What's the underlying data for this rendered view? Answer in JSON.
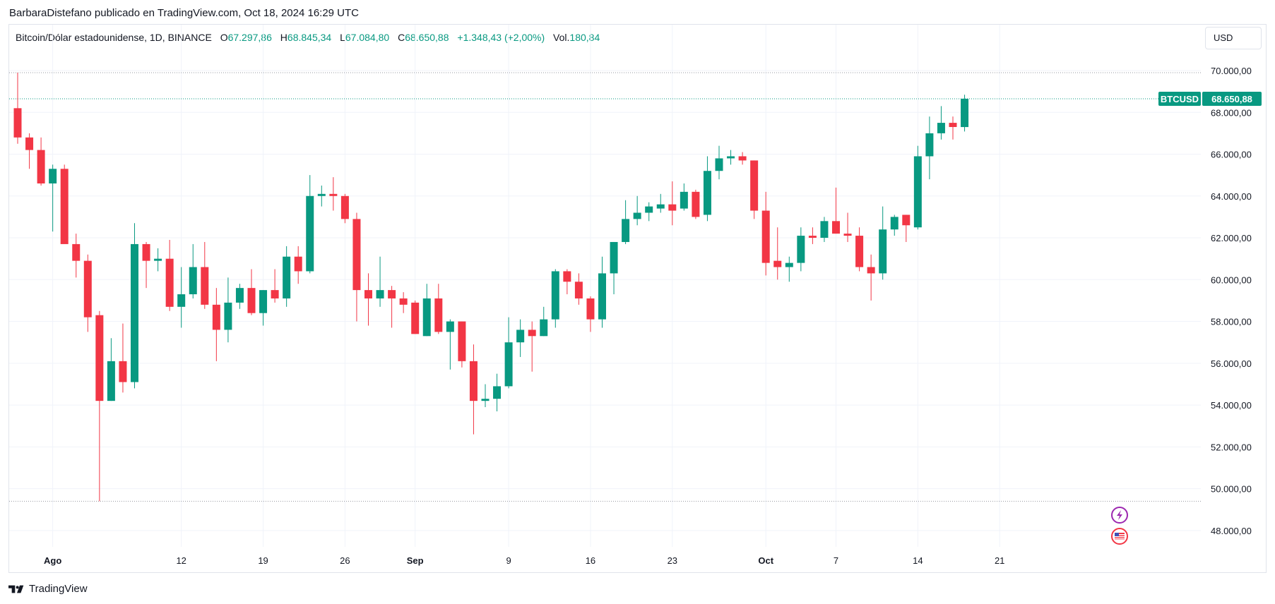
{
  "attribution": "BarbaraDistefano publicado en TradingView.com, Oct 18, 2024 16:29 UTC",
  "legend": {
    "symbol": "Bitcoin/Dólar estadounidense, 1D, BINANCE",
    "open_label": "O",
    "open": "67.297,86",
    "high_label": "H",
    "high": "68.845,34",
    "low_label": "L",
    "low": "67.084,80",
    "close_label": "C",
    "close": "68.650,88",
    "change": "+1.348,43 (+2,00%)",
    "volume_label": "Vol.",
    "volume": "180,84"
  },
  "currency_button": "USD",
  "footer_brand": "TradingView",
  "colors": {
    "up": "#089981",
    "down": "#f23645",
    "grid": "#f0f3fa",
    "text": "#131722",
    "dotted": "#9598a1"
  },
  "chart_data": {
    "type": "candlestick",
    "symbol_tag": "BTCUSD",
    "last_price_label": "68.650,88",
    "ylim": [
      47000,
      70800
    ],
    "y_ticks": [
      48000,
      50000,
      52000,
      54000,
      56000,
      58000,
      60000,
      62000,
      64000,
      66000,
      68000,
      70000
    ],
    "y_tick_labels": [
      "48.000,00",
      "50.000,00",
      "52.000,00",
      "54.000,00",
      "56.000,00",
      "58.000,00",
      "60.000,00",
      "62.000,00",
      "64.000,00",
      "66.000,00",
      "68.000,00",
      "70.000,00"
    ],
    "x_ticks": [
      {
        "day": 3,
        "label": "Ago",
        "bold": true
      },
      {
        "day": 14,
        "label": "12",
        "bold": false
      },
      {
        "day": 21,
        "label": "19",
        "bold": false
      },
      {
        "day": 28,
        "label": "26",
        "bold": false
      },
      {
        "day": 34,
        "label": "Sep",
        "bold": true
      },
      {
        "day": 42,
        "label": "9",
        "bold": false
      },
      {
        "day": 49,
        "label": "16",
        "bold": false
      },
      {
        "day": 56,
        "label": "23",
        "bold": false
      },
      {
        "day": 64,
        "label": "Oct",
        "bold": true
      },
      {
        "day": 70,
        "label": "7",
        "bold": false
      },
      {
        "day": 77,
        "label": "14",
        "bold": false
      },
      {
        "day": 84,
        "label": "21",
        "bold": false
      }
    ],
    "reference_lines": [
      69900,
      49400
    ],
    "candles": [
      {
        "o": 68200,
        "h": 69900,
        "l": 66500,
        "c": 66800
      },
      {
        "o": 66800,
        "h": 67000,
        "l": 65300,
        "c": 66200
      },
      {
        "o": 66200,
        "h": 66800,
        "l": 64500,
        "c": 64600
      },
      {
        "o": 64600,
        "h": 65500,
        "l": 62300,
        "c": 65300
      },
      {
        "o": 65300,
        "h": 65500,
        "l": 61800,
        "c": 61700
      },
      {
        "o": 61700,
        "h": 62200,
        "l": 60100,
        "c": 60900
      },
      {
        "o": 60900,
        "h": 61200,
        "l": 57500,
        "c": 58200
      },
      {
        "o": 58300,
        "h": 58500,
        "l": 49400,
        "c": 54200
      },
      {
        "o": 54200,
        "h": 57200,
        "l": 54200,
        "c": 56100
      },
      {
        "o": 56100,
        "h": 57900,
        "l": 54600,
        "c": 55100
      },
      {
        "o": 55100,
        "h": 62700,
        "l": 54800,
        "c": 61700
      },
      {
        "o": 61700,
        "h": 61800,
        "l": 59600,
        "c": 60900
      },
      {
        "o": 60900,
        "h": 61500,
        "l": 60400,
        "c": 61000
      },
      {
        "o": 61000,
        "h": 61900,
        "l": 58500,
        "c": 58700
      },
      {
        "o": 58700,
        "h": 60600,
        "l": 57700,
        "c": 59300
      },
      {
        "o": 59300,
        "h": 61700,
        "l": 59100,
        "c": 60600
      },
      {
        "o": 60600,
        "h": 61800,
        "l": 58600,
        "c": 58800
      },
      {
        "o": 58800,
        "h": 59600,
        "l": 56100,
        "c": 57600
      },
      {
        "o": 57600,
        "h": 60100,
        "l": 57000,
        "c": 58900
      },
      {
        "o": 58900,
        "h": 59800,
        "l": 58600,
        "c": 59600
      },
      {
        "o": 59600,
        "h": 60500,
        "l": 58300,
        "c": 58400
      },
      {
        "o": 58400,
        "h": 59500,
        "l": 57800,
        "c": 59500
      },
      {
        "o": 59500,
        "h": 60500,
        "l": 58900,
        "c": 59100
      },
      {
        "o": 59100,
        "h": 61600,
        "l": 58700,
        "c": 61100
      },
      {
        "o": 61100,
        "h": 61600,
        "l": 59800,
        "c": 60400
      },
      {
        "o": 60400,
        "h": 65000,
        "l": 60300,
        "c": 64000
      },
      {
        "o": 64000,
        "h": 64500,
        "l": 63500,
        "c": 64100
      },
      {
        "o": 64100,
        "h": 64900,
        "l": 63300,
        "c": 64000
      },
      {
        "o": 64000,
        "h": 64100,
        "l": 62700,
        "c": 62900
      },
      {
        "o": 62900,
        "h": 63200,
        "l": 58000,
        "c": 59500
      },
      {
        "o": 59500,
        "h": 60300,
        "l": 57800,
        "c": 59100
      },
      {
        "o": 59100,
        "h": 61100,
        "l": 58700,
        "c": 59500
      },
      {
        "o": 59500,
        "h": 59700,
        "l": 57700,
        "c": 59100
      },
      {
        "o": 59100,
        "h": 59400,
        "l": 58400,
        "c": 58800
      },
      {
        "o": 58900,
        "h": 59000,
        "l": 57400,
        "c": 57400
      },
      {
        "o": 57300,
        "h": 59800,
        "l": 57300,
        "c": 59100
      },
      {
        "o": 59100,
        "h": 59800,
        "l": 57400,
        "c": 57500
      },
      {
        "o": 57500,
        "h": 58100,
        "l": 55700,
        "c": 58000
      },
      {
        "o": 58000,
        "h": 58000,
        "l": 55800,
        "c": 56100
      },
      {
        "o": 56100,
        "h": 56900,
        "l": 52600,
        "c": 54200
      },
      {
        "o": 54200,
        "h": 55000,
        "l": 53900,
        "c": 54300
      },
      {
        "o": 54300,
        "h": 55500,
        "l": 53700,
        "c": 54900
      },
      {
        "o": 54900,
        "h": 58200,
        "l": 54800,
        "c": 57000
      },
      {
        "o": 57000,
        "h": 58100,
        "l": 56300,
        "c": 57600
      },
      {
        "o": 57600,
        "h": 58000,
        "l": 55600,
        "c": 57300
      },
      {
        "o": 57300,
        "h": 58700,
        "l": 57300,
        "c": 58100
      },
      {
        "o": 58100,
        "h": 60500,
        "l": 57700,
        "c": 60400
      },
      {
        "o": 60400,
        "h": 60500,
        "l": 59300,
        "c": 59900
      },
      {
        "o": 59900,
        "h": 60300,
        "l": 58800,
        "c": 59100
      },
      {
        "o": 59100,
        "h": 59200,
        "l": 57500,
        "c": 58100
      },
      {
        "o": 58100,
        "h": 61100,
        "l": 57700,
        "c": 60300
      },
      {
        "o": 60300,
        "h": 61800,
        "l": 59300,
        "c": 61800
      },
      {
        "o": 61800,
        "h": 63800,
        "l": 61700,
        "c": 62900
      },
      {
        "o": 62900,
        "h": 64000,
        "l": 62600,
        "c": 63200
      },
      {
        "o": 63200,
        "h": 63700,
        "l": 62800,
        "c": 63500
      },
      {
        "o": 63400,
        "h": 64100,
        "l": 63200,
        "c": 63600
      },
      {
        "o": 63600,
        "h": 64700,
        "l": 62600,
        "c": 63300
      },
      {
        "o": 63400,
        "h": 64600,
        "l": 63300,
        "c": 64200
      },
      {
        "o": 64200,
        "h": 64300,
        "l": 62900,
        "c": 63000
      },
      {
        "o": 63100,
        "h": 65900,
        "l": 62800,
        "c": 65200
      },
      {
        "o": 65200,
        "h": 66400,
        "l": 64800,
        "c": 65800
      },
      {
        "o": 65800,
        "h": 66200,
        "l": 65500,
        "c": 65900
      },
      {
        "o": 65900,
        "h": 66100,
        "l": 65500,
        "c": 65700
      },
      {
        "o": 65700,
        "h": 65700,
        "l": 62900,
        "c": 63300
      },
      {
        "o": 63300,
        "h": 64200,
        "l": 60200,
        "c": 60800
      },
      {
        "o": 60900,
        "h": 62500,
        "l": 60000,
        "c": 60600
      },
      {
        "o": 60600,
        "h": 61100,
        "l": 59900,
        "c": 60800
      },
      {
        "o": 60800,
        "h": 62500,
        "l": 60400,
        "c": 62100
      },
      {
        "o": 62100,
        "h": 62500,
        "l": 61700,
        "c": 62000
      },
      {
        "o": 62000,
        "h": 63000,
        "l": 61800,
        "c": 62800
      },
      {
        "o": 62800,
        "h": 64400,
        "l": 62200,
        "c": 62200
      },
      {
        "o": 62200,
        "h": 63200,
        "l": 61800,
        "c": 62100
      },
      {
        "o": 62100,
        "h": 62500,
        "l": 60400,
        "c": 60600
      },
      {
        "o": 60600,
        "h": 61200,
        "l": 59000,
        "c": 60300
      },
      {
        "o": 60300,
        "h": 63500,
        "l": 60000,
        "c": 62400
      },
      {
        "o": 62400,
        "h": 63100,
        "l": 62100,
        "c": 63000
      },
      {
        "o": 63100,
        "h": 63100,
        "l": 61800,
        "c": 62600
      },
      {
        "o": 62500,
        "h": 66400,
        "l": 62400,
        "c": 65900
      },
      {
        "o": 65900,
        "h": 67800,
        "l": 64800,
        "c": 67000
      },
      {
        "o": 67000,
        "h": 68300,
        "l": 66700,
        "c": 67500
      },
      {
        "o": 67500,
        "h": 67800,
        "l": 66700,
        "c": 67300
      },
      {
        "o": 67298,
        "h": 68845,
        "l": 67085,
        "c": 68651
      }
    ]
  }
}
